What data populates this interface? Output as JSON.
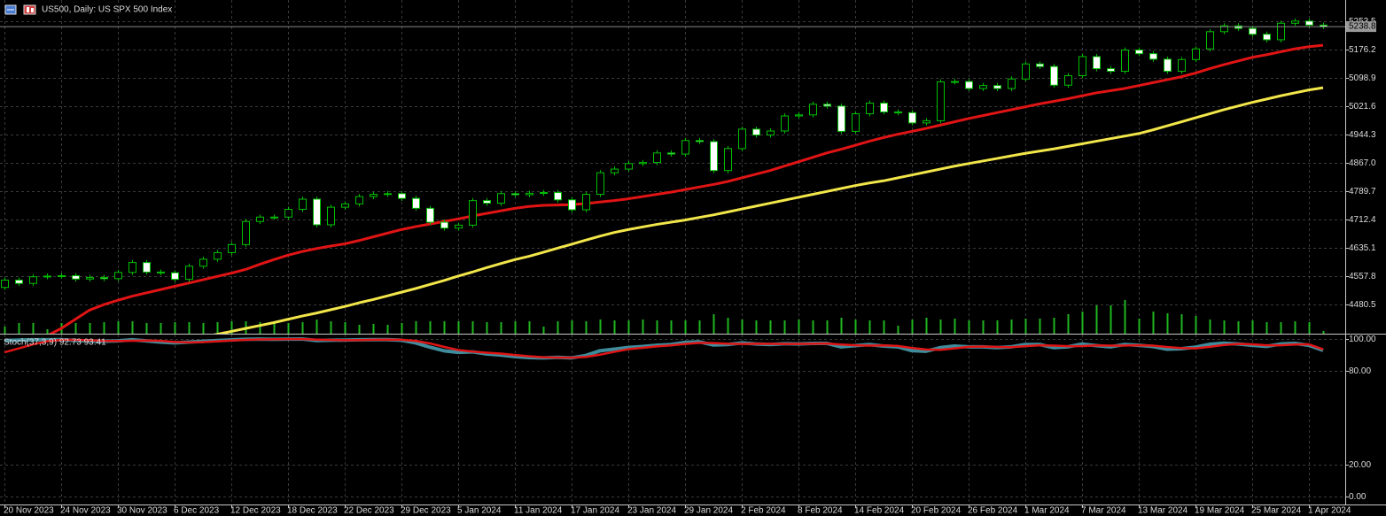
{
  "chart_data": [
    {
      "type": "candlestick",
      "title": "US500, Daily:  US SPX 500 Index",
      "categories": [
        "20 Nov 2023",
        null,
        null,
        null,
        "24 Nov 2023",
        null,
        null,
        null,
        "30 Nov 2023",
        null,
        null,
        null,
        "6 Dec 2023",
        null,
        null,
        null,
        "12 Dec 2023",
        null,
        null,
        null,
        "18 Dec 2023",
        null,
        null,
        null,
        "22 Dec 2023",
        null,
        null,
        null,
        "29 Dec 2023",
        null,
        null,
        null,
        "5 Jan 2024",
        null,
        null,
        null,
        "11 Jan 2024",
        null,
        null,
        null,
        "17 Jan 2024",
        null,
        null,
        null,
        "23 Jan 2024",
        null,
        null,
        null,
        "29 Jan 2024",
        null,
        null,
        null,
        "2 Feb 2024",
        null,
        null,
        null,
        "8 Feb 2024",
        null,
        null,
        null,
        "14 Feb 2024",
        null,
        null,
        null,
        "20 Feb 2024",
        null,
        null,
        null,
        "26 Feb 2024",
        null,
        null,
        null,
        "1 Mar 2024",
        null,
        null,
        null,
        "7 Mar 2024",
        null,
        null,
        null,
        "13 Mar 2024",
        null,
        null,
        null,
        "19 Mar 2024",
        null,
        null,
        null,
        "25 Mar 2024",
        null,
        null,
        null,
        "1 Apr 2024",
        null
      ],
      "open": [
        4527,
        4547,
        4538,
        4556,
        4558,
        4559,
        4550,
        4554,
        4551,
        4568,
        4595,
        4569,
        4567,
        4549,
        4585,
        4604,
        4622,
        4644,
        4707,
        4719,
        4719,
        4740,
        4768,
        4698,
        4746,
        4755,
        4775,
        4781,
        4783,
        4770,
        4743,
        4705,
        4689,
        4697,
        4764,
        4757,
        4783,
        4780,
        4784,
        4786,
        4766,
        4739,
        4781,
        4840,
        4850,
        4865,
        4868,
        4894,
        4891,
        4928,
        4925,
        4846,
        4906,
        4959,
        4943,
        4954,
        4995,
        4998,
        5027,
        5022,
        4953,
        5001,
        5030,
        5006,
        5004,
        4976,
        4982,
        5088,
        5089,
        5070,
        5078,
        5070,
        5096,
        5137,
        5130,
        5079,
        5105,
        5157,
        5124,
        5117,
        5175,
        5165,
        5150,
        5117,
        5149,
        5178,
        5225,
        5241,
        5234,
        5218,
        5203,
        5248,
        5254,
        5243
      ],
      "high": [
        4554,
        4554,
        4563,
        4565,
        4566,
        4566,
        4561,
        4561,
        4575,
        4602,
        4602,
        4576,
        4574,
        4592,
        4611,
        4629,
        4651,
        4714,
        4726,
        4726,
        4747,
        4775,
        4775,
        4753,
        4762,
        4782,
        4788,
        4790,
        4790,
        4777,
        4750,
        4712,
        4704,
        4771,
        4771,
        4790,
        4790,
        4791,
        4793,
        4793,
        4773,
        4788,
        4847,
        4857,
        4872,
        4875,
        4901,
        4901,
        4935,
        4935,
        4932,
        4913,
        4966,
        4966,
        4961,
        5002,
        5005,
        5034,
        5034,
        5029,
        5008,
        5037,
        5037,
        5013,
        5011,
        4989,
        5095,
        5096,
        5096,
        5085,
        5085,
        5103,
        5144,
        5144,
        5137,
        5112,
        5164,
        5164,
        5131,
        5182,
        5182,
        5172,
        5157,
        5156,
        5185,
        5232,
        5248,
        5248,
        5241,
        5225,
        5255,
        5261,
        5261,
        5250
      ],
      "low": [
        4520,
        4531,
        4531,
        4549,
        4551,
        4543,
        4543,
        4544,
        4544,
        4561,
        4562,
        4560,
        4542,
        4542,
        4578,
        4597,
        4615,
        4637,
        4700,
        4712,
        4712,
        4733,
        4691,
        4691,
        4739,
        4748,
        4768,
        4774,
        4763,
        4736,
        4698,
        4682,
        4682,
        4690,
        4750,
        4750,
        4773,
        4773,
        4777,
        4759,
        4732,
        4732,
        4774,
        4833,
        4843,
        4858,
        4861,
        4884,
        4884,
        4918,
        4839,
        4839,
        4899,
        4936,
        4936,
        4947,
        4988,
        4991,
        5015,
        4946,
        4946,
        4994,
        4999,
        4997,
        4969,
        4969,
        4975,
        5081,
        5063,
        5063,
        5063,
        5063,
        5089,
        5123,
        5072,
        5072,
        5098,
        5117,
        5110,
        5110,
        5158,
        5143,
        5110,
        5110,
        5142,
        5171,
        5218,
        5227,
        5211,
        5196,
        5196,
        5241,
        5236,
        5232
      ],
      "close": [
        4547,
        4538,
        4556,
        4558,
        4559,
        4550,
        4554,
        4551,
        4568,
        4595,
        4569,
        4567,
        4549,
        4585,
        4604,
        4622,
        4644,
        4707,
        4719,
        4719,
        4740,
        4768,
        4698,
        4746,
        4755,
        4775,
        4781,
        4783,
        4770,
        4743,
        4705,
        4689,
        4697,
        4764,
        4757,
        4783,
        4780,
        4784,
        4786,
        4766,
        4739,
        4781,
        4840,
        4850,
        4865,
        4868,
        4894,
        4891,
        4928,
        4925,
        4846,
        4906,
        4959,
        4943,
        4954,
        4995,
        4998,
        5027,
        5022,
        4953,
        5001,
        5030,
        5006,
        5004,
        4976,
        4982,
        5088,
        5089,
        5070,
        5078,
        5070,
        5096,
        5137,
        5130,
        5079,
        5105,
        5157,
        5124,
        5117,
        5175,
        5165,
        5150,
        5117,
        5149,
        5178,
        5225,
        5241,
        5234,
        5218,
        5203,
        5248,
        5254,
        5243,
        5238.8
      ],
      "up_color": "#000000",
      "down_color": "#ffffff",
      "wick_color": "#00c000",
      "volume": {
        "color": "#1fb51f",
        "values": [
          8,
          12,
          12,
          5,
          12,
          12,
          12,
          13,
          14,
          14,
          12,
          12,
          13,
          13,
          12,
          13,
          14,
          14,
          13,
          13,
          12,
          13,
          16,
          14,
          13,
          10,
          11,
          10,
          12,
          14,
          14,
          14,
          14,
          14,
          13,
          13,
          14,
          14,
          8,
          14,
          15,
          14,
          16,
          15,
          15,
          16,
          15,
          15,
          15,
          15,
          22,
          18,
          16,
          15,
          15,
          15,
          16,
          15,
          15,
          18,
          16,
          15,
          15,
          9,
          16,
          18,
          16,
          17,
          15,
          15,
          15,
          16,
          17,
          17,
          18,
          22,
          25,
          32,
          32,
          38,
          17,
          25,
          23,
          22,
          20,
          16,
          15,
          14,
          15,
          13,
          13,
          14,
          13,
          3
        ]
      },
      "overlays": [
        {
          "color": "#e01414",
          "values": [
            4330,
            4355,
            4375,
            4395,
            4415,
            4440,
            4465,
            4480,
            4492,
            4503,
            4512,
            4521,
            4530,
            4539,
            4548,
            4557,
            4566,
            4576,
            4590,
            4603,
            4615,
            4625,
            4633,
            4640,
            4646,
            4655,
            4665,
            4675,
            4685,
            4693,
            4700,
            4707,
            4714,
            4722,
            4729,
            4736,
            4743,
            4748,
            4751,
            4752,
            4753,
            4756,
            4760,
            4764,
            4769,
            4775,
            4781,
            4787,
            4794,
            4801,
            4808,
            4816,
            4826,
            4836,
            4846,
            4858,
            4870,
            4882,
            4894,
            4904,
            4915,
            4926,
            4936,
            4945,
            4953,
            4961,
            4970,
            4979,
            4988,
            4996,
            5004,
            5012,
            5020,
            5028,
            5035,
            5042,
            5050,
            5058,
            5064,
            5070,
            5078,
            5086,
            5094,
            5102,
            5112,
            5124,
            5135,
            5145,
            5155,
            5162,
            5170,
            5178,
            5184,
            5188
          ]
        },
        {
          "color": "#f2e64a",
          "values": [
            4280,
            4288,
            4296,
            4304,
            4312,
            4320,
            4328,
            4336,
            4344,
            4352,
            4360,
            4368,
            4376,
            4384,
            4392,
            4399,
            4407,
            4415,
            4423,
            4431,
            4440,
            4449,
            4457,
            4466,
            4475,
            4485,
            4494,
            4504,
            4514,
            4524,
            4535,
            4546,
            4558,
            4569,
            4581,
            4592,
            4603,
            4612,
            4623,
            4634,
            4645,
            4656,
            4667,
            4677,
            4685,
            4692,
            4699,
            4705,
            4711,
            4718,
            4725,
            4733,
            4741,
            4749,
            4757,
            4765,
            4773,
            4781,
            4789,
            4797,
            4805,
            4812,
            4818,
            4826,
            4834,
            4842,
            4850,
            4858,
            4865,
            4872,
            4879,
            4886,
            4893,
            4899,
            4905,
            4912,
            4919,
            4926,
            4933,
            4940,
            4947,
            4957,
            4968,
            4979,
            4990,
            5001,
            5012,
            5022,
            5032,
            5041,
            5050,
            5058,
            5066,
            5072
          ]
        }
      ],
      "last_price": 5238.8,
      "ylim": [
        4400.8,
        5311.5
      ],
      "yticks": [
        4480.5,
        4557.8,
        4635.1,
        4712.4,
        4789.7,
        {
          "value": 4867,
          "label": "4867.0"
        },
        4944.3,
        5021.6,
        5098.9,
        5176.2,
        5253.5
      ],
      "grid": true
    },
    {
      "type": "line",
      "title": "Stoch(37,3,9) 92.73 93.41",
      "series": [
        {
          "color": "#3f8c9c",
          "values": [
            99,
            99.3,
            99.5,
            99.5,
            99.6,
            99,
            98.8,
            98.5,
            98.8,
            99.5,
            98.8,
            98,
            97.5,
            98,
            98.5,
            99,
            99.4,
            99.8,
            99.9,
            99.8,
            99.9,
            100,
            99,
            99.2,
            99.3,
            99.5,
            99.6,
            99.6,
            99.2,
            97.5,
            94.8,
            92.5,
            91.5,
            91.8,
            90.5,
            89.8,
            88.8,
            88.2,
            88,
            88.3,
            88,
            89.5,
            92.5,
            93.5,
            94.6,
            95.2,
            96,
            96.5,
            97.8,
            98.2,
            96.2,
            96.5,
            97.5,
            96.8,
            96.5,
            97,
            96.8,
            97.2,
            97.2,
            95,
            95.8,
            96.5,
            95.5,
            95,
            92.6,
            92.2,
            94.5,
            95.5,
            95,
            95,
            94.5,
            95,
            96.5,
            96.5,
            94.5,
            95,
            96.8,
            95.8,
            95,
            96.5,
            96,
            95.2,
            93.5,
            93.8,
            94.8,
            96.6,
            97.3,
            96.8,
            96,
            95.3,
            96.8,
            97.2,
            96,
            92.73
          ]
        },
        {
          "color": "#e01414",
          "values": [
            91.5,
            94,
            96.5,
            98.5,
            99.4,
            99.4,
            99.2,
            98.8,
            98.7,
            98.9,
            99,
            98.8,
            98.1,
            97.8,
            98,
            98.5,
            99,
            99.4,
            99.7,
            99.8,
            99.9,
            99.9,
            99.6,
            99.4,
            99.2,
            99.3,
            99.5,
            99.6,
            99.5,
            98.8,
            97.2,
            95,
            93,
            92,
            91.3,
            90.7,
            89.8,
            89,
            88.4,
            88.2,
            88.1,
            88.6,
            90,
            91.8,
            93.5,
            94.4,
            95.3,
            95.9,
            96.8,
            97.5,
            97.4,
            97,
            96.8,
            97,
            96.9,
            96.8,
            96.8,
            97,
            97.1,
            96.5,
            96,
            95.8,
            95.9,
            95.6,
            94.3,
            93.3,
            93.1,
            94,
            95,
            95.2,
            94.9,
            94.8,
            95.4,
            96,
            95.8,
            95.4,
            95.5,
            95.9,
            95.8,
            95.8,
            96,
            95.8,
            94.9,
            94.2,
            94,
            95,
            96.2,
            96.8,
            96.6,
            96,
            96,
            96.5,
            96.6,
            93.41
          ]
        }
      ],
      "ylim": [
        -5.1,
        102.8
      ],
      "yticks": [
        {
          "value": 0,
          "label": "0.00"
        },
        {
          "value": 20,
          "label": "20.00"
        },
        {
          "value": 80,
          "label": "80.00"
        },
        {
          "value": 100,
          "label": "100.00"
        }
      ],
      "grid": true
    }
  ]
}
